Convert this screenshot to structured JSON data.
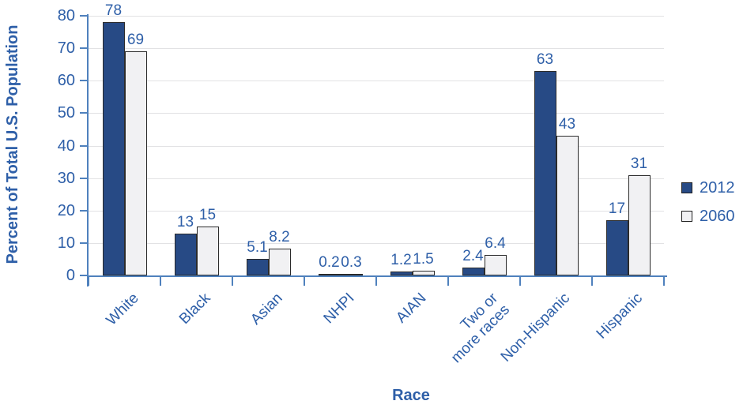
{
  "colors": {
    "text_blue": "#2e5fa8",
    "axis_blue": "#4f81bd",
    "gridline": "#e2e2e4",
    "bar_border": "#2b2b2b",
    "background": "#ffffff"
  },
  "chart_data": {
    "type": "bar",
    "title": "",
    "xlabel": "Race",
    "ylabel": "Percent of Total U.S. Population",
    "categories": [
      "White",
      "Black",
      "Asian",
      "NHPI",
      "AIAN",
      "Two or\nmore races",
      "Non-Hispanic",
      "Hispanic"
    ],
    "series": [
      {
        "name": "2012",
        "color": "#274a85",
        "values": [
          78,
          13,
          5.1,
          0.2,
          1.2,
          2.4,
          63,
          17
        ]
      },
      {
        "name": "2060",
        "color": "#f1f1f3",
        "values": [
          69,
          15,
          8.2,
          0.3,
          1.5,
          6.4,
          43,
          31
        ]
      }
    ],
    "ylim": [
      0,
      80
    ],
    "ytick_step": 10,
    "grid": true,
    "value_labels": true,
    "legend_position": "right"
  }
}
